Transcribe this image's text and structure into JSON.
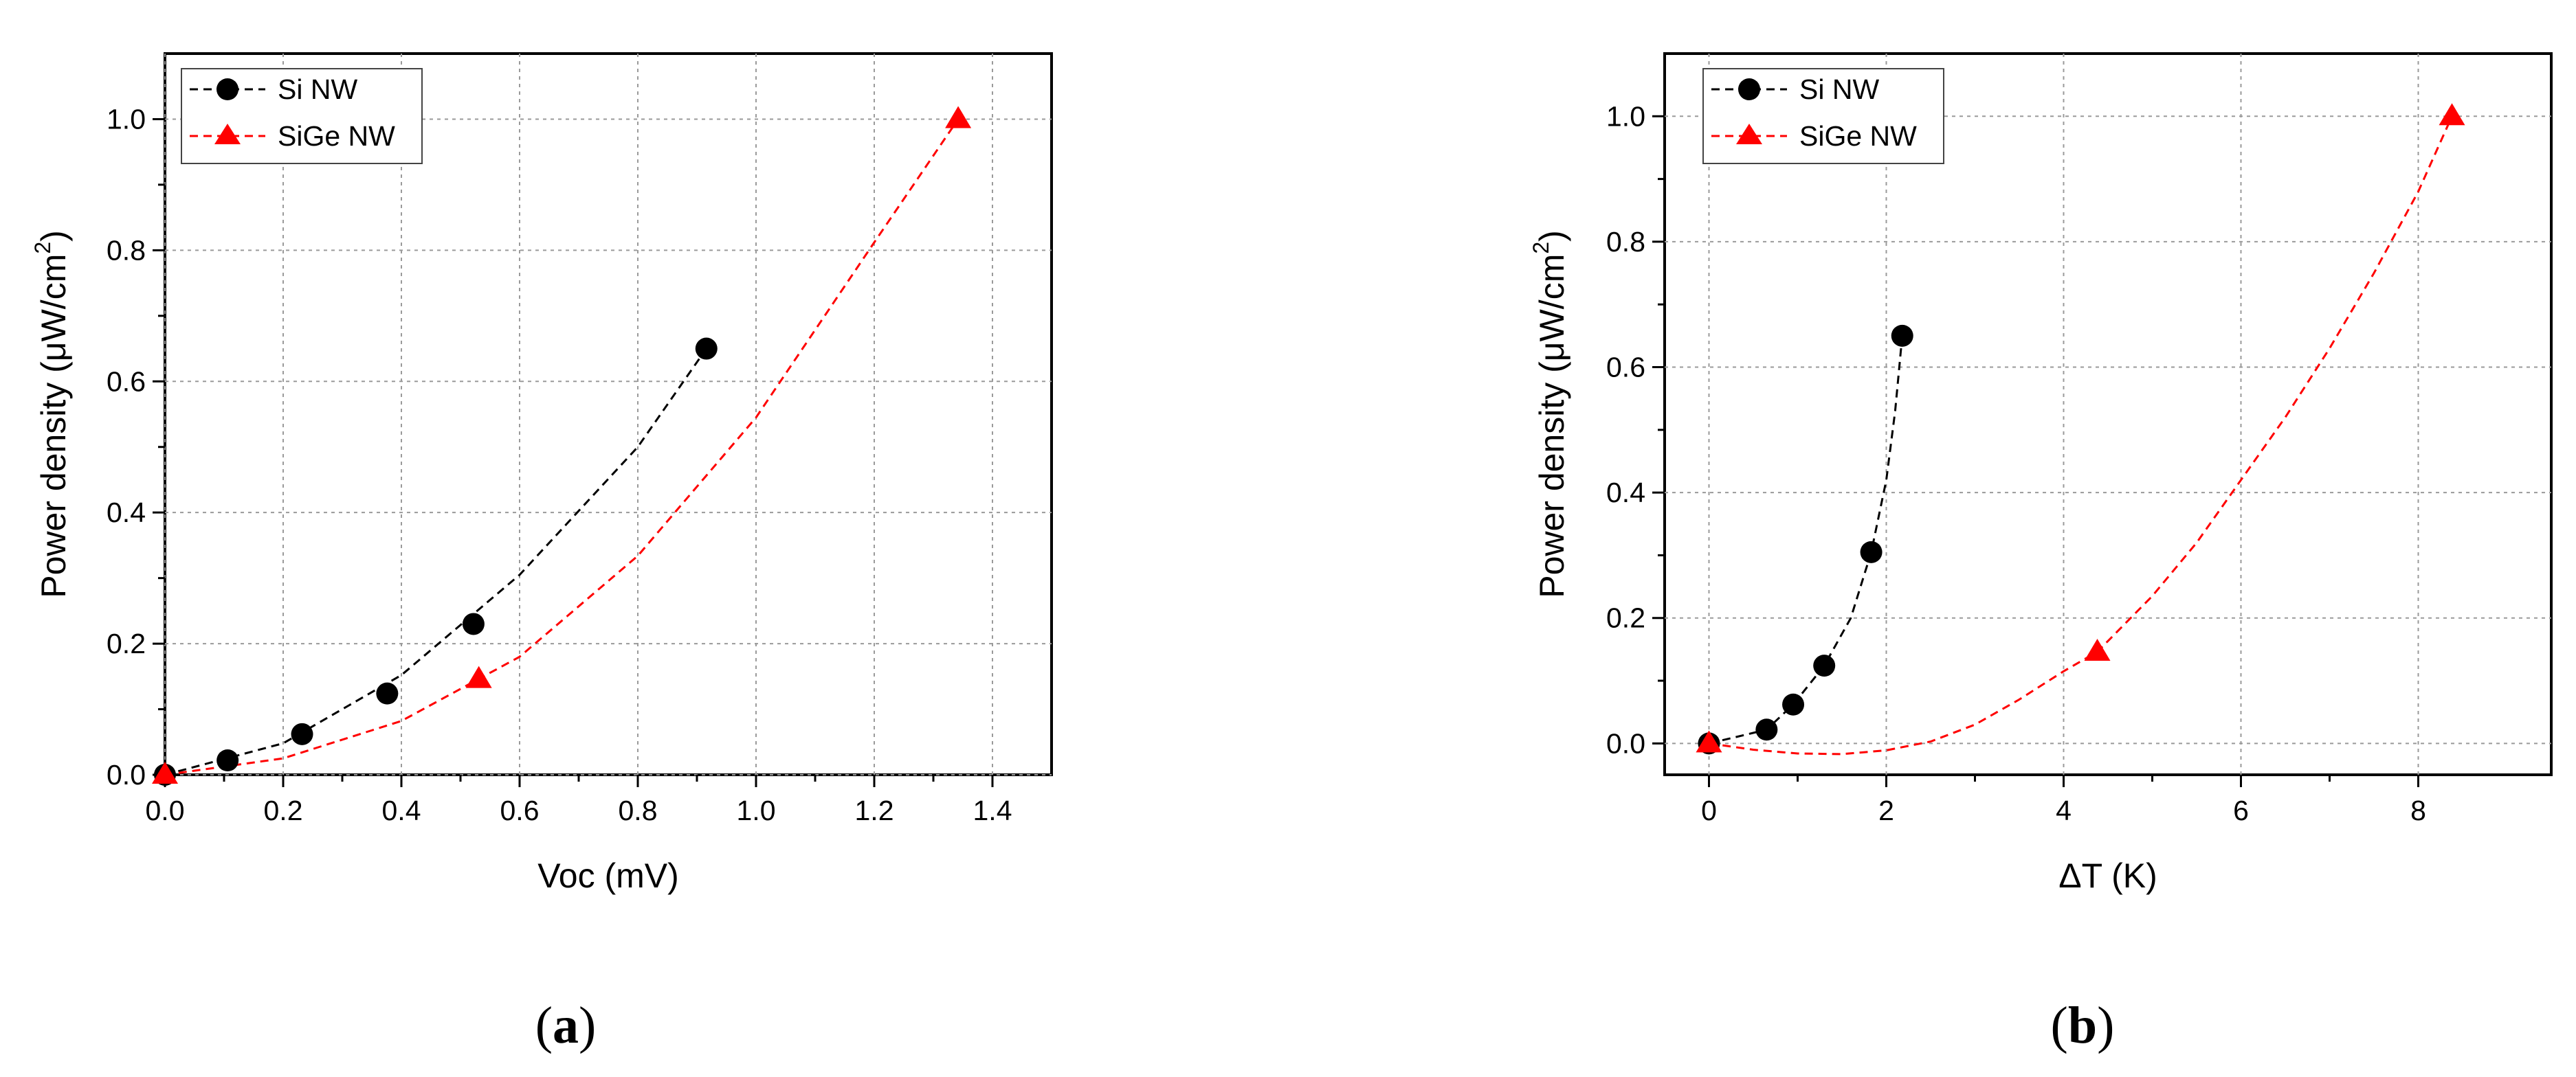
{
  "chart_data": [
    {
      "type": "scatter",
      "panel_label": "a",
      "xlabel": "Voc (mV)",
      "ylabel_main": "Power density (μW/cm",
      "ylabel_sup": "2",
      "ylabel_end": ")",
      "xlim": [
        0,
        1.5
      ],
      "ylim": [
        0,
        1.1
      ],
      "x_ticks": [
        "0.0",
        "0.2",
        "0.4",
        "0.6",
        "0.8",
        "1.0",
        "1.2",
        "1.4"
      ],
      "y_ticks": [
        "0.0",
        "0.2",
        "0.4",
        "0.6",
        "0.8",
        "1.0"
      ],
      "grid": true,
      "legend_position": "top-left",
      "series": [
        {
          "name": "Si NW",
          "marker": "circle",
          "color": "#000000",
          "x": [
            0,
            0.106,
            0.232,
            0.376,
            0.522,
            0.916
          ],
          "y": [
            0,
            0.022,
            0.062,
            0.124,
            0.23,
            0.65
          ],
          "fit_x": [
            0,
            0.2,
            0.4,
            0.6,
            0.8,
            0.916
          ],
          "fit_y": [
            0,
            0.048,
            0.152,
            0.305,
            0.5,
            0.65
          ]
        },
        {
          "name": "SiGe NW",
          "marker": "triangle",
          "color": "#ff0000",
          "x": [
            0,
            0.531,
            1.342
          ],
          "y": [
            0,
            0.146,
            1.0
          ],
          "fit_x": [
            0,
            0.2,
            0.4,
            0.6,
            0.8,
            1.0,
            1.2,
            1.342
          ],
          "fit_y": [
            0,
            0.025,
            0.082,
            0.18,
            0.334,
            0.545,
            0.812,
            1.0
          ]
        }
      ]
    },
    {
      "type": "scatter",
      "panel_label": "b",
      "xlabel": "ΔT (K)",
      "ylabel_main": "Power density (μW/cm",
      "ylabel_sup": "2",
      "ylabel_end": ")",
      "xlim": [
        -0.5,
        9.5
      ],
      "ylim": [
        -0.05,
        1.1
      ],
      "x_ticks": [
        "0",
        "2",
        "4",
        "6",
        "8"
      ],
      "x_tick_values": [
        0,
        2,
        4,
        6,
        8
      ],
      "y_ticks": [
        "0.0",
        "0.2",
        "0.4",
        "0.6",
        "0.8",
        "1.0"
      ],
      "grid": true,
      "legend_position": "top-left",
      "series": [
        {
          "name": "Si NW",
          "marker": "circle",
          "color": "#000000",
          "x": [
            0,
            0.65,
            0.95,
            1.3,
            1.83,
            2.18
          ],
          "y": [
            0,
            0.022,
            0.062,
            0.124,
            0.305,
            0.65
          ],
          "fit_x": [
            0,
            0.3,
            0.65,
            0.95,
            1.3,
            1.6,
            1.83,
            2.0,
            2.1,
            2.18
          ],
          "fit_y": [
            0,
            0.01,
            0.022,
            0.062,
            0.124,
            0.2,
            0.305,
            0.42,
            0.53,
            0.65
          ]
        },
        {
          "name": "SiGe NW",
          "marker": "triangle",
          "color": "#ff0000",
          "x": [
            0,
            4.38,
            8.38
          ],
          "y": [
            0,
            0.146,
            1.0
          ],
          "fit_x": [
            0,
            0.5,
            1,
            1.5,
            2,
            2.5,
            3,
            3.5,
            4,
            4.38,
            5,
            5.5,
            6,
            6.5,
            7,
            7.5,
            8,
            8.38
          ],
          "fit_y": [
            0,
            -0.01,
            -0.016,
            -0.017,
            -0.011,
            0.003,
            0.03,
            0.07,
            0.115,
            0.146,
            0.235,
            0.32,
            0.42,
            0.52,
            0.63,
            0.75,
            0.88,
            1.0
          ]
        }
      ]
    }
  ]
}
